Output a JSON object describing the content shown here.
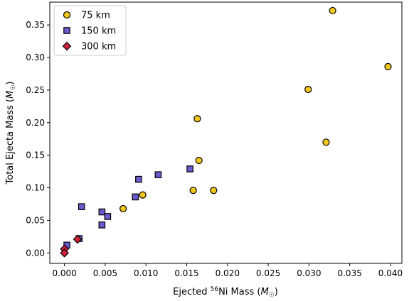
{
  "chart_data": {
    "type": "scatter",
    "xlabel": "Ejected ⁵⁶Ni Mass (M☉)",
    "ylabel": "Total Ejecta Mass (M☉)",
    "xlim": [
      -0.0018,
      0.0414
    ],
    "ylim": [
      -0.016,
      0.385
    ],
    "xticks": [
      0.0,
      0.005,
      0.01,
      0.015,
      0.02,
      0.025,
      0.03,
      0.035,
      0.04
    ],
    "xtick_labels": [
      "0.000",
      "0.005",
      "0.010",
      "0.015",
      "0.020",
      "0.025",
      "0.030",
      "0.035",
      "0.040"
    ],
    "yticks": [
      0.0,
      0.05,
      0.1,
      0.15,
      0.2,
      0.25,
      0.3,
      0.35
    ],
    "ytick_labels": [
      "0.00",
      "0.05",
      "0.10",
      "0.15",
      "0.20",
      "0.25",
      "0.30",
      "0.35"
    ],
    "grid": false,
    "legend_position": "top-left",
    "series": [
      {
        "name": "75 km",
        "marker": "circle",
        "color": "#f2c81e",
        "edge_color": "#000000",
        "x": [
          0.0072,
          0.0096,
          0.0158,
          0.0163,
          0.0165,
          0.0183,
          0.0299,
          0.0321,
          0.0329,
          0.0397
        ],
        "y": [
          0.068,
          0.089,
          0.096,
          0.206,
          0.142,
          0.096,
          0.251,
          0.17,
          0.372,
          0.286
        ]
      },
      {
        "name": "150 km",
        "marker": "square",
        "color": "#6a5acd",
        "edge_color": "#000000",
        "x": [
          0.0003,
          0.0018,
          0.0021,
          0.0046,
          0.0046,
          0.0053,
          0.0087,
          0.0091,
          0.0115,
          0.0154
        ],
        "y": [
          0.012,
          0.022,
          0.071,
          0.043,
          0.063,
          0.056,
          0.086,
          0.113,
          0.12,
          0.129
        ]
      },
      {
        "name": "300 km",
        "marker": "diamond",
        "color": "#d0203a",
        "edge_color": "#000000",
        "x": [
          0.0,
          0.0,
          0.0016
        ],
        "y": [
          0.006,
          0.0,
          0.021
        ]
      }
    ]
  }
}
